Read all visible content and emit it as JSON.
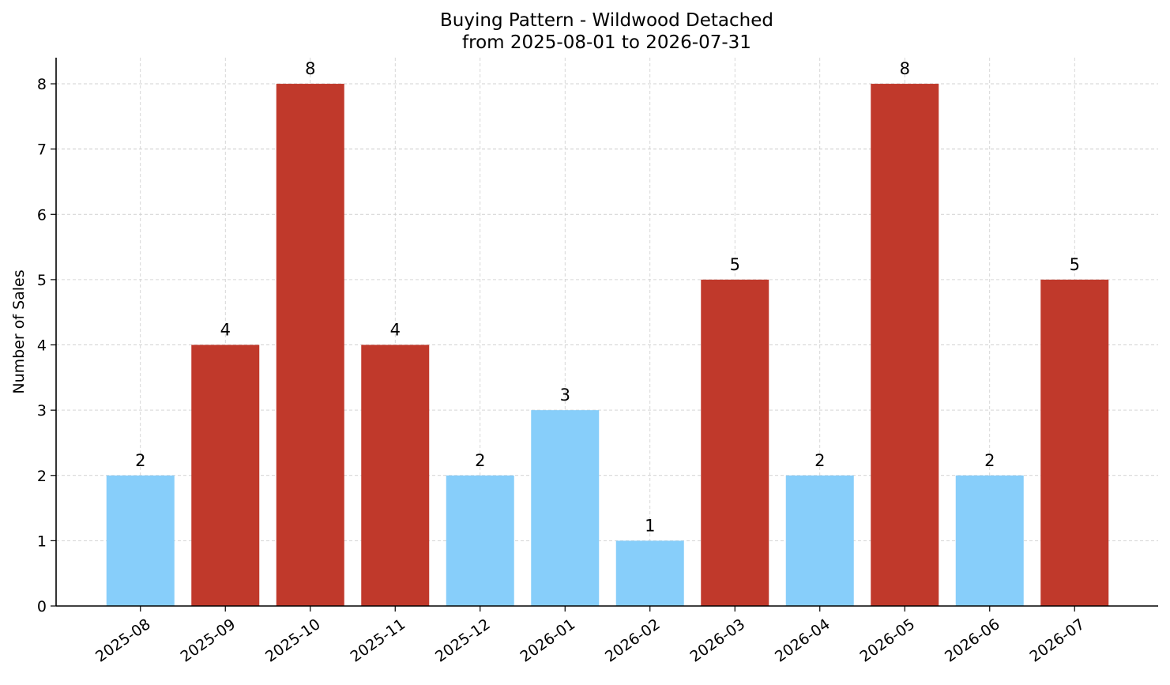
{
  "chart_data": {
    "type": "bar",
    "title": "Buying Pattern - Wildwood Detached",
    "subtitle": "from 2025-08-01 to 2026-07-31",
    "xlabel": "",
    "ylabel": "Number of Sales",
    "categories": [
      "2025-08",
      "2025-09",
      "2025-10",
      "2025-11",
      "2025-12",
      "2026-01",
      "2026-02",
      "2026-03",
      "2026-04",
      "2026-05",
      "2026-06",
      "2026-07"
    ],
    "values": [
      2,
      4,
      8,
      4,
      2,
      3,
      1,
      5,
      2,
      8,
      2,
      5
    ],
    "bar_colors": [
      "#87CEFA",
      "#C0392B",
      "#C0392B",
      "#C0392B",
      "#87CEFA",
      "#87CEFA",
      "#87CEFA",
      "#C0392B",
      "#87CEFA",
      "#C0392B",
      "#87CEFA",
      "#C0392B"
    ],
    "ylim": [
      0,
      8.4
    ],
    "yticks": [
      0,
      1,
      2,
      3,
      4,
      5,
      6,
      7,
      8
    ],
    "grid": true,
    "data_labels": true,
    "legend": "none"
  }
}
